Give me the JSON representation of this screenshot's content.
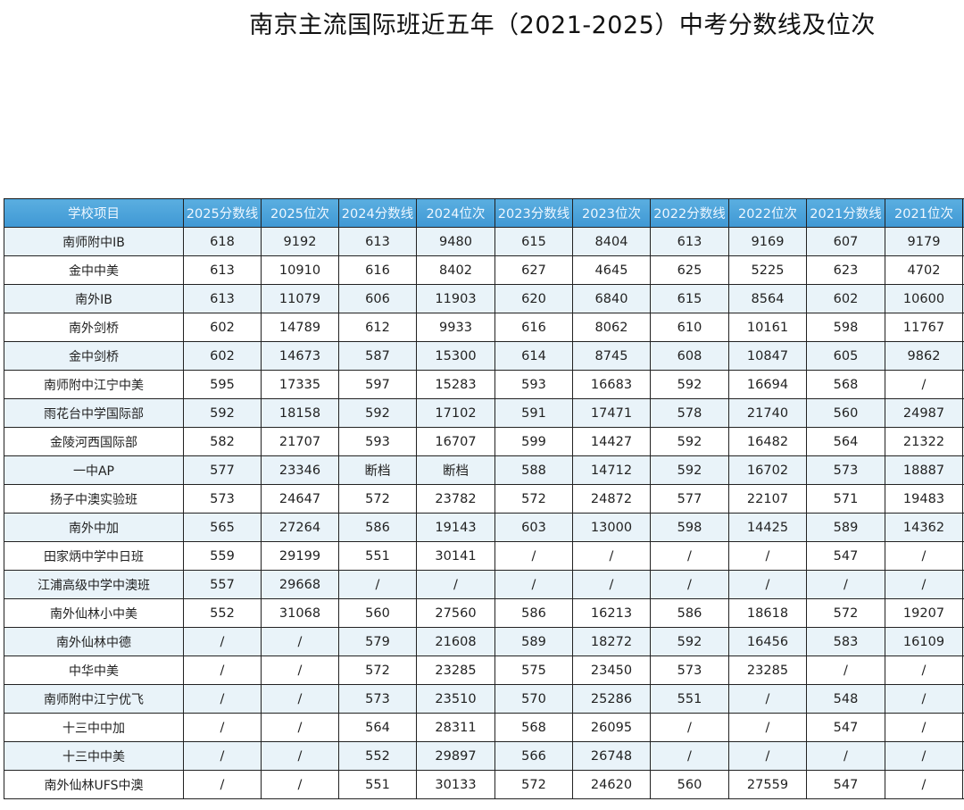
{
  "title": "南京主流国际班近五年（2021-2025）中考分数线及位次",
  "colors": {
    "header": "#4aa3db",
    "row_alt": "#e9f3f9"
  },
  "table": {
    "headers": [
      "学校项目",
      "2025分数线",
      "2025位次",
      "2024分数线",
      "2024位次",
      "2023分数线",
      "2023位次",
      "2022分数线",
      "2022位次",
      "2021分数线",
      "2021位次"
    ],
    "rows": [
      [
        "南师附中IB",
        "618",
        "9192",
        "613",
        "9480",
        "615",
        "8404",
        "613",
        "9169",
        "607",
        "9179"
      ],
      [
        "金中中美",
        "613",
        "10910",
        "616",
        "8402",
        "627",
        "4645",
        "625",
        "5225",
        "623",
        "4702"
      ],
      [
        "南外IB",
        "613",
        "11079",
        "606",
        "11903",
        "620",
        "6840",
        "615",
        "8564",
        "602",
        "10600"
      ],
      [
        "南外剑桥",
        "602",
        "14789",
        "612",
        "9933",
        "616",
        "8062",
        "610",
        "10161",
        "598",
        "11767"
      ],
      [
        "金中剑桥",
        "602",
        "14673",
        "587",
        "15300",
        "614",
        "8745",
        "608",
        "10847",
        "605",
        "9862"
      ],
      [
        "南师附中江宁中美",
        "595",
        "17335",
        "597",
        "15283",
        "593",
        "16683",
        "592",
        "16694",
        "568",
        "/"
      ],
      [
        "雨花台中学国际部",
        "592",
        "18158",
        "592",
        "17102",
        "591",
        "17471",
        "578",
        "21740",
        "560",
        "24987"
      ],
      [
        "金陵河西国际部",
        "582",
        "21707",
        "593",
        "16707",
        "599",
        "14427",
        "592",
        "16482",
        "564",
        "21322"
      ],
      [
        "一中AP",
        "577",
        "23346",
        "断档",
        "断档",
        "588",
        "14712",
        "592",
        "16702",
        "573",
        "18887"
      ],
      [
        "扬子中澳实验班",
        "573",
        "24647",
        "572",
        "23782",
        "572",
        "24872",
        "577",
        "22107",
        "571",
        "19483"
      ],
      [
        "南外中加",
        "565",
        "27264",
        "586",
        "19143",
        "603",
        "13000",
        "598",
        "14425",
        "589",
        "14362"
      ],
      [
        "田家炳中学中日班",
        "559",
        "29199",
        "551",
        "30141",
        "/",
        "/",
        "/",
        "/",
        "547",
        "/"
      ],
      [
        "江浦高级中学中澳班",
        "557",
        "29668",
        "/",
        "/",
        "/",
        "/",
        "/",
        "/",
        "/",
        "/"
      ],
      [
        "南外仙林小中美",
        "552",
        "31068",
        "560",
        "27560",
        "586",
        "16213",
        "586",
        "18618",
        "572",
        "19207"
      ],
      [
        "南外仙林中德",
        "/",
        "/",
        "579",
        "21608",
        "589",
        "18272",
        "592",
        "16456",
        "583",
        "16109"
      ],
      [
        "中华中美",
        "/",
        "/",
        "572",
        "23285",
        "575",
        "23450",
        "573",
        "23285",
        "/",
        "/"
      ],
      [
        "南师附中江宁优飞",
        "/",
        "/",
        "573",
        "23510",
        "570",
        "25286",
        "551",
        "/",
        "548",
        "/"
      ],
      [
        "十三中中加",
        "/",
        "/",
        "564",
        "28311",
        "568",
        "26095",
        "/",
        "/",
        "547",
        "/"
      ],
      [
        "十三中中美",
        "/",
        "/",
        "552",
        "29897",
        "566",
        "26748",
        "/",
        "/",
        "/",
        "/"
      ],
      [
        "南外仙林UFS中澳",
        "/",
        "/",
        "551",
        "30133",
        "572",
        "24620",
        "560",
        "27559",
        "547",
        "/"
      ]
    ]
  }
}
